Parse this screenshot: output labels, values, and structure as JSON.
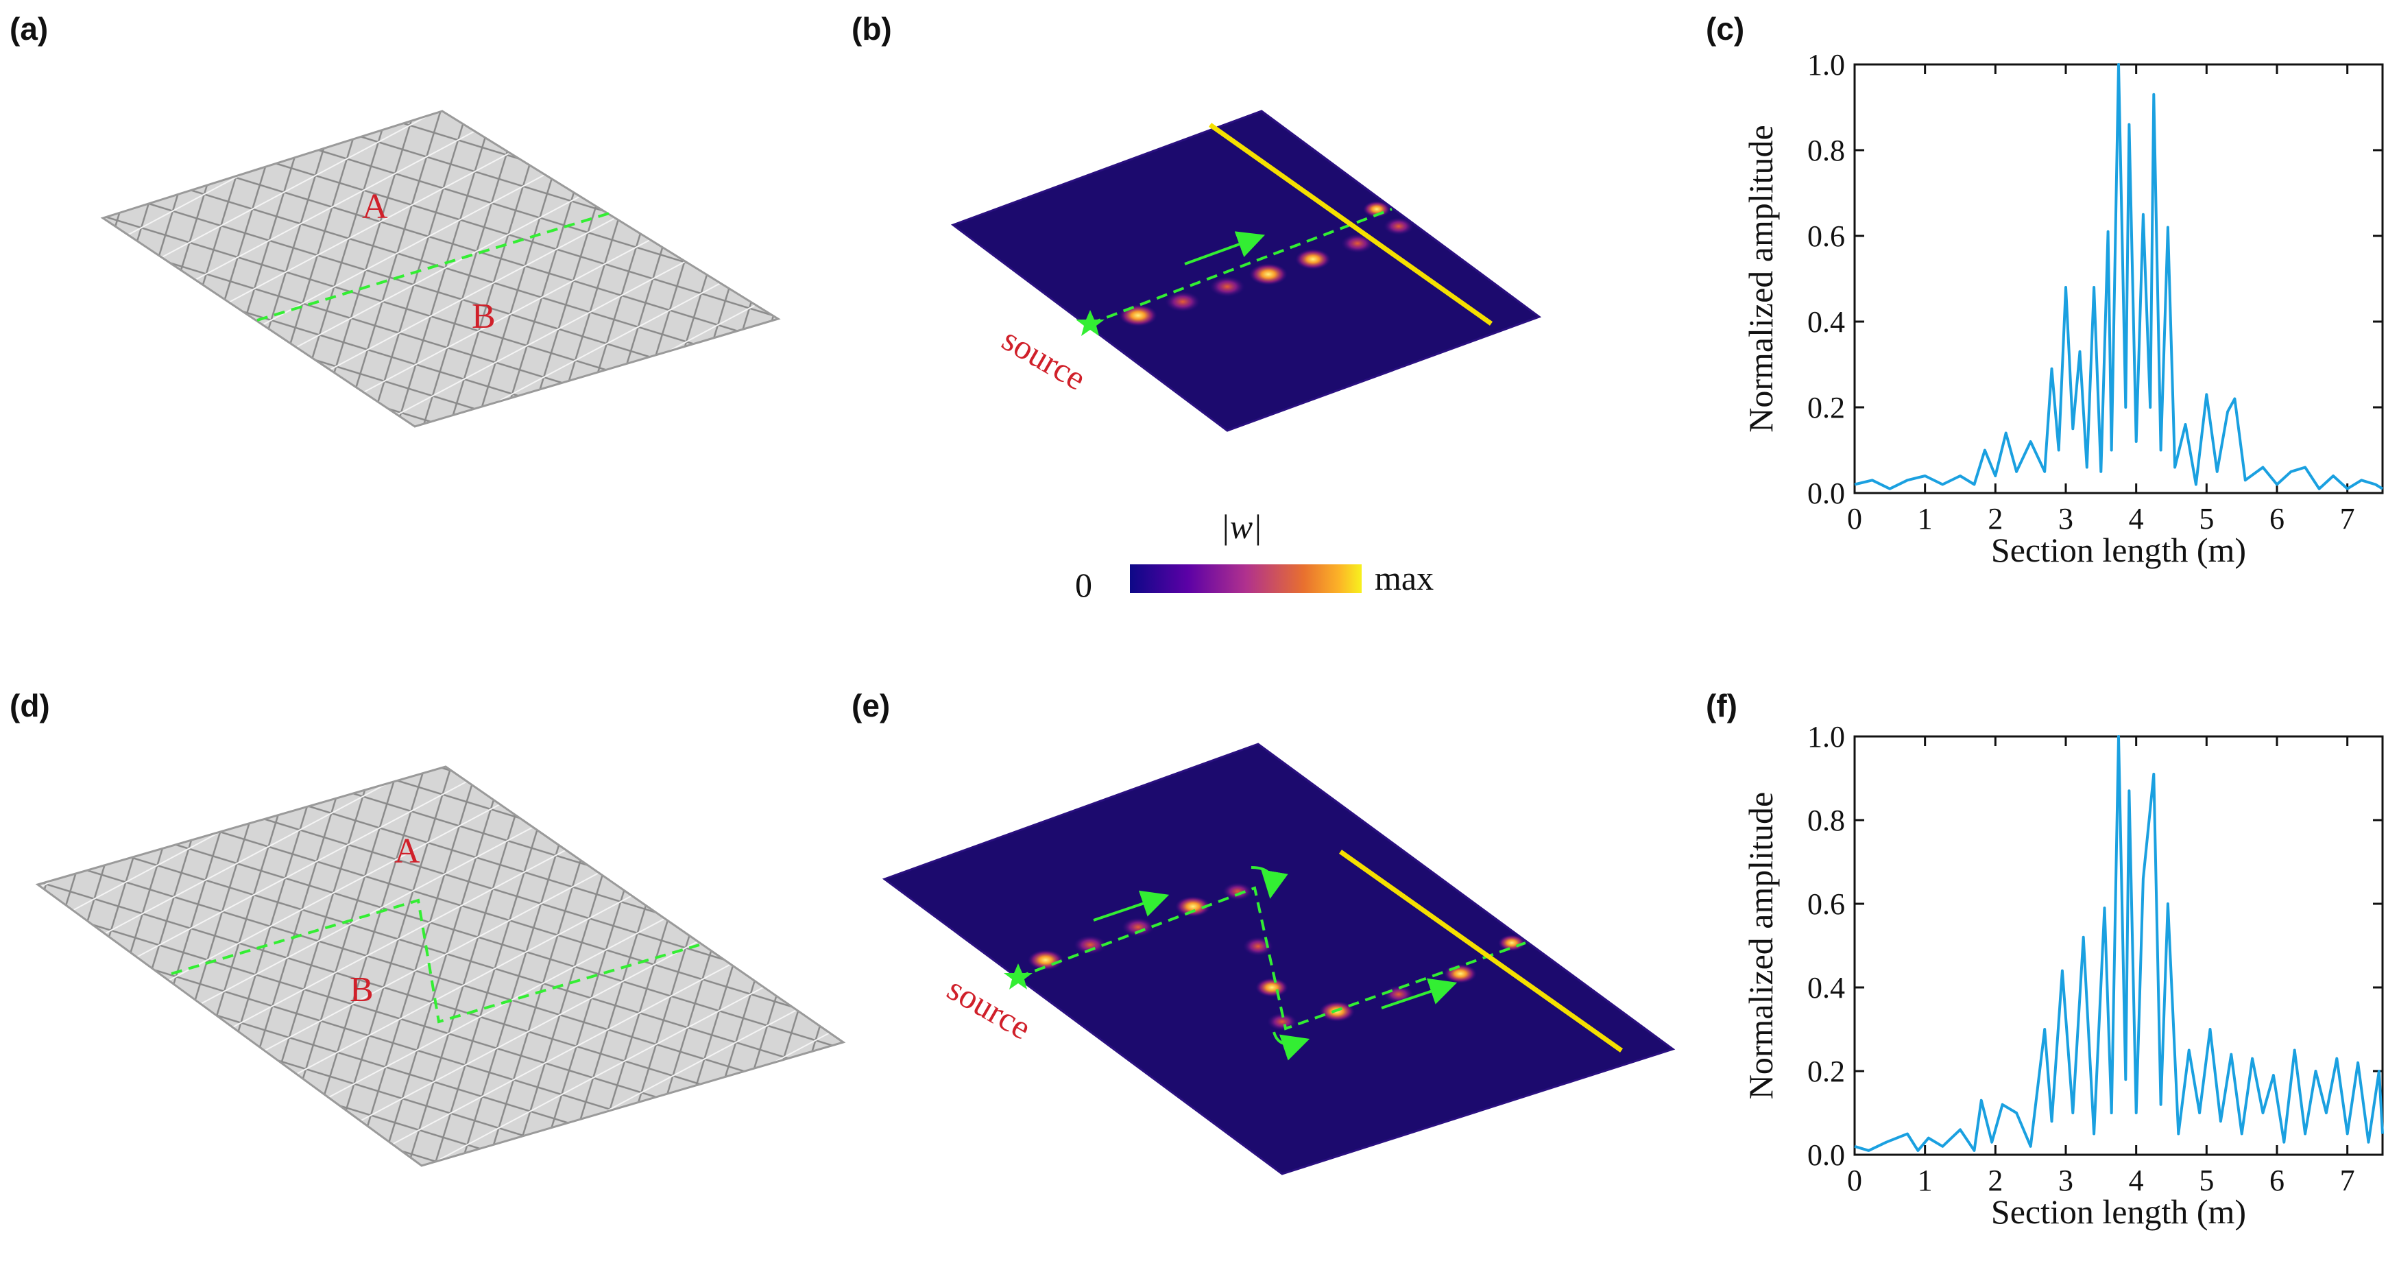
{
  "panels": {
    "a": {
      "label": "(a)",
      "region_A": "A",
      "region_B": "B"
    },
    "b": {
      "label": "(b)",
      "source": "source"
    },
    "d": {
      "label": "(d)",
      "region_A": "A",
      "region_B": "B"
    },
    "e": {
      "label": "(e)",
      "source": "source"
    }
  },
  "colorbar": {
    "title": "|w|",
    "min_label": "0",
    "max_label": "max"
  },
  "colors": {
    "line": "#1aa0e0",
    "waveguide": "#33ee33",
    "cut": "#f5e000",
    "field_bg": "#1c0a6e"
  },
  "chart_data": [
    {
      "panel": "(c)",
      "type": "line",
      "xlabel": "Section length (m)",
      "ylabel": "Normalized amplitude",
      "xlim": [
        0,
        7.5
      ],
      "ylim": [
        0,
        1.0
      ],
      "xticks": [
        "0",
        "1",
        "2",
        "3",
        "4",
        "5",
        "6",
        "7"
      ],
      "yticks": [
        "0.0",
        "0.2",
        "0.4",
        "0.6",
        "0.8",
        "1.0"
      ],
      "x": [
        0,
        0.25,
        0.5,
        0.75,
        1.0,
        1.25,
        1.5,
        1.7,
        1.85,
        2.0,
        2.15,
        2.3,
        2.5,
        2.7,
        2.8,
        2.9,
        3.0,
        3.1,
        3.2,
        3.3,
        3.4,
        3.5,
        3.6,
        3.65,
        3.75,
        3.85,
        3.9,
        4.0,
        4.1,
        4.2,
        4.25,
        4.35,
        4.45,
        4.55,
        4.7,
        4.85,
        5.0,
        5.15,
        5.3,
        5.4,
        5.55,
        5.8,
        6.0,
        6.2,
        6.4,
        6.6,
        6.8,
        7.0,
        7.2,
        7.4,
        7.5
      ],
      "series": [
        {
          "name": "amplitude",
          "values": [
            0.02,
            0.03,
            0.01,
            0.03,
            0.04,
            0.02,
            0.04,
            0.02,
            0.1,
            0.04,
            0.14,
            0.05,
            0.12,
            0.05,
            0.29,
            0.1,
            0.48,
            0.15,
            0.33,
            0.06,
            0.48,
            0.05,
            0.61,
            0.1,
            1.0,
            0.2,
            0.86,
            0.12,
            0.65,
            0.2,
            0.93,
            0.1,
            0.62,
            0.06,
            0.16,
            0.02,
            0.23,
            0.05,
            0.19,
            0.22,
            0.03,
            0.06,
            0.02,
            0.05,
            0.06,
            0.01,
            0.04,
            0.01,
            0.03,
            0.02,
            0.01
          ]
        }
      ]
    },
    {
      "panel": "(f)",
      "type": "line",
      "xlabel": "Section length (m)",
      "ylabel": "Normalized amplitude",
      "xlim": [
        0,
        7.5
      ],
      "ylim": [
        0,
        1.0
      ],
      "xticks": [
        "0",
        "1",
        "2",
        "3",
        "4",
        "5",
        "6",
        "7"
      ],
      "yticks": [
        "0.0",
        "0.2",
        "0.4",
        "0.6",
        "0.8",
        "1.0"
      ],
      "x": [
        0,
        0.2,
        0.45,
        0.75,
        0.9,
        1.05,
        1.25,
        1.5,
        1.7,
        1.8,
        1.95,
        2.1,
        2.3,
        2.5,
        2.7,
        2.8,
        2.95,
        3.1,
        3.25,
        3.4,
        3.55,
        3.65,
        3.75,
        3.85,
        3.9,
        4.0,
        4.1,
        4.25,
        4.35,
        4.45,
        4.6,
        4.75,
        4.9,
        5.05,
        5.2,
        5.35,
        5.5,
        5.65,
        5.8,
        5.95,
        6.1,
        6.25,
        6.4,
        6.55,
        6.7,
        6.85,
        7.0,
        7.15,
        7.3,
        7.45,
        7.5
      ],
      "series": [
        {
          "name": "amplitude",
          "values": [
            0.02,
            0.01,
            0.03,
            0.05,
            0.01,
            0.04,
            0.02,
            0.06,
            0.01,
            0.13,
            0.03,
            0.12,
            0.1,
            0.02,
            0.3,
            0.08,
            0.44,
            0.1,
            0.52,
            0.05,
            0.59,
            0.1,
            1.0,
            0.18,
            0.87,
            0.1,
            0.66,
            0.91,
            0.12,
            0.6,
            0.05,
            0.25,
            0.1,
            0.3,
            0.08,
            0.24,
            0.05,
            0.23,
            0.1,
            0.19,
            0.03,
            0.25,
            0.05,
            0.2,
            0.1,
            0.23,
            0.05,
            0.22,
            0.03,
            0.2,
            0.05
          ]
        }
      ]
    }
  ]
}
